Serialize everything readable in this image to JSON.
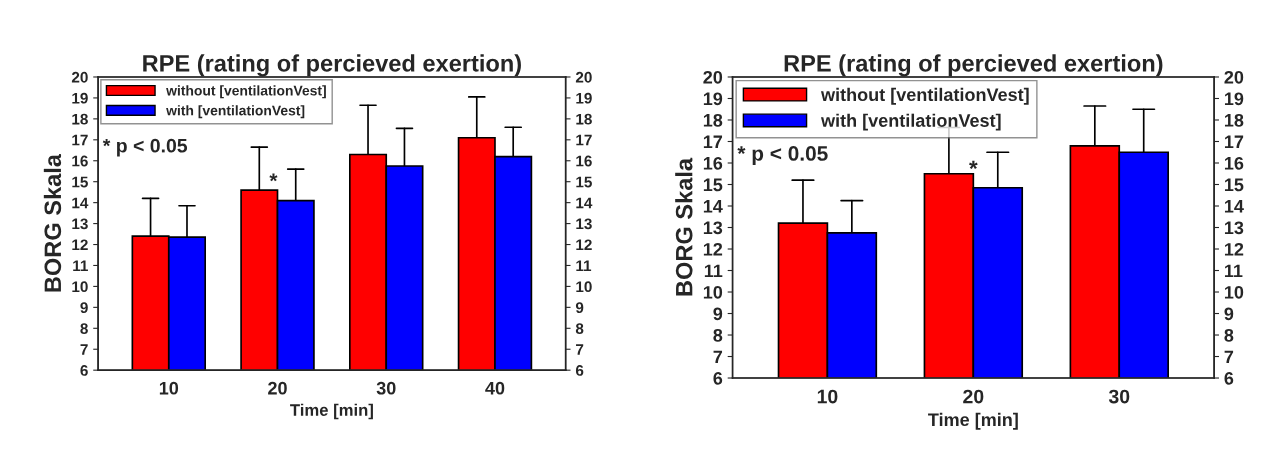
{
  "chart_data": [
    {
      "type": "bar",
      "title": "RPE (rating of percieved exertion)",
      "xlabel": "Time [min]",
      "ylabel": "BORG Skala",
      "categories": [
        "10",
        "20",
        "30",
        "40"
      ],
      "series": [
        {
          "name": "without [ventilationVest]",
          "color": "#ff0000",
          "values": [
            12.4,
            14.6,
            16.3,
            17.1
          ],
          "errors": [
            [
              12.4,
              14.2
            ],
            [
              14.6,
              16.65
            ],
            [
              16.3,
              18.65
            ],
            [
              17.1,
              19.05
            ]
          ]
        },
        {
          "name": "with [ventilationVest]",
          "color": "#0000ff",
          "values": [
            12.35,
            14.1,
            15.75,
            16.2
          ],
          "errors": [
            [
              12.35,
              13.85
            ],
            [
              14.1,
              15.6
            ],
            [
              15.75,
              17.55
            ],
            [
              16.2,
              17.6
            ]
          ]
        }
      ],
      "ylim": [
        6,
        20
      ],
      "yticks": [
        6,
        7,
        8,
        9,
        10,
        11,
        12,
        13,
        14,
        15,
        16,
        17,
        18,
        19,
        20
      ],
      "y2lim": [
        6,
        20
      ],
      "y2ticks": [
        6,
        7,
        8,
        9,
        10,
        11,
        12,
        13,
        14,
        15,
        16,
        17,
        18,
        19,
        20
      ],
      "annotations": [
        "* p < 0.05",
        "*"
      ],
      "legend": "top left",
      "grid": false
    },
    {
      "type": "bar",
      "title": "RPE (rating of percieved exertion)",
      "xlabel": "Time [min]",
      "ylabel": "BORG Skala",
      "categories": [
        "10",
        "20",
        "30"
      ],
      "series": [
        {
          "name": "without [ventilationVest]",
          "color": "#ff0000",
          "values": [
            13.2,
            15.5,
            16.8
          ],
          "errors": [
            [
              13.2,
              15.2
            ],
            [
              15.5,
              17.65
            ],
            [
              16.8,
              18.65
            ]
          ]
        },
        {
          "name": "with [ventilationVest]",
          "color": "#0000ff",
          "values": [
            12.75,
            14.85,
            16.5
          ],
          "errors": [
            [
              12.75,
              14.25
            ],
            [
              14.85,
              16.5
            ],
            [
              16.5,
              18.5
            ]
          ]
        }
      ],
      "ylim": [
        6,
        20
      ],
      "yticks": [
        6,
        7,
        8,
        9,
        10,
        11,
        12,
        13,
        14,
        15,
        16,
        17,
        18,
        19,
        20
      ],
      "y2lim": [
        6,
        20
      ],
      "y2ticks": [
        6,
        7,
        8,
        9,
        10,
        11,
        12,
        13,
        14,
        15,
        16,
        17,
        18,
        19,
        20
      ],
      "annotations": [
        "* p < 0.05",
        "*"
      ],
      "legend": "top left",
      "grid": false
    }
  ]
}
